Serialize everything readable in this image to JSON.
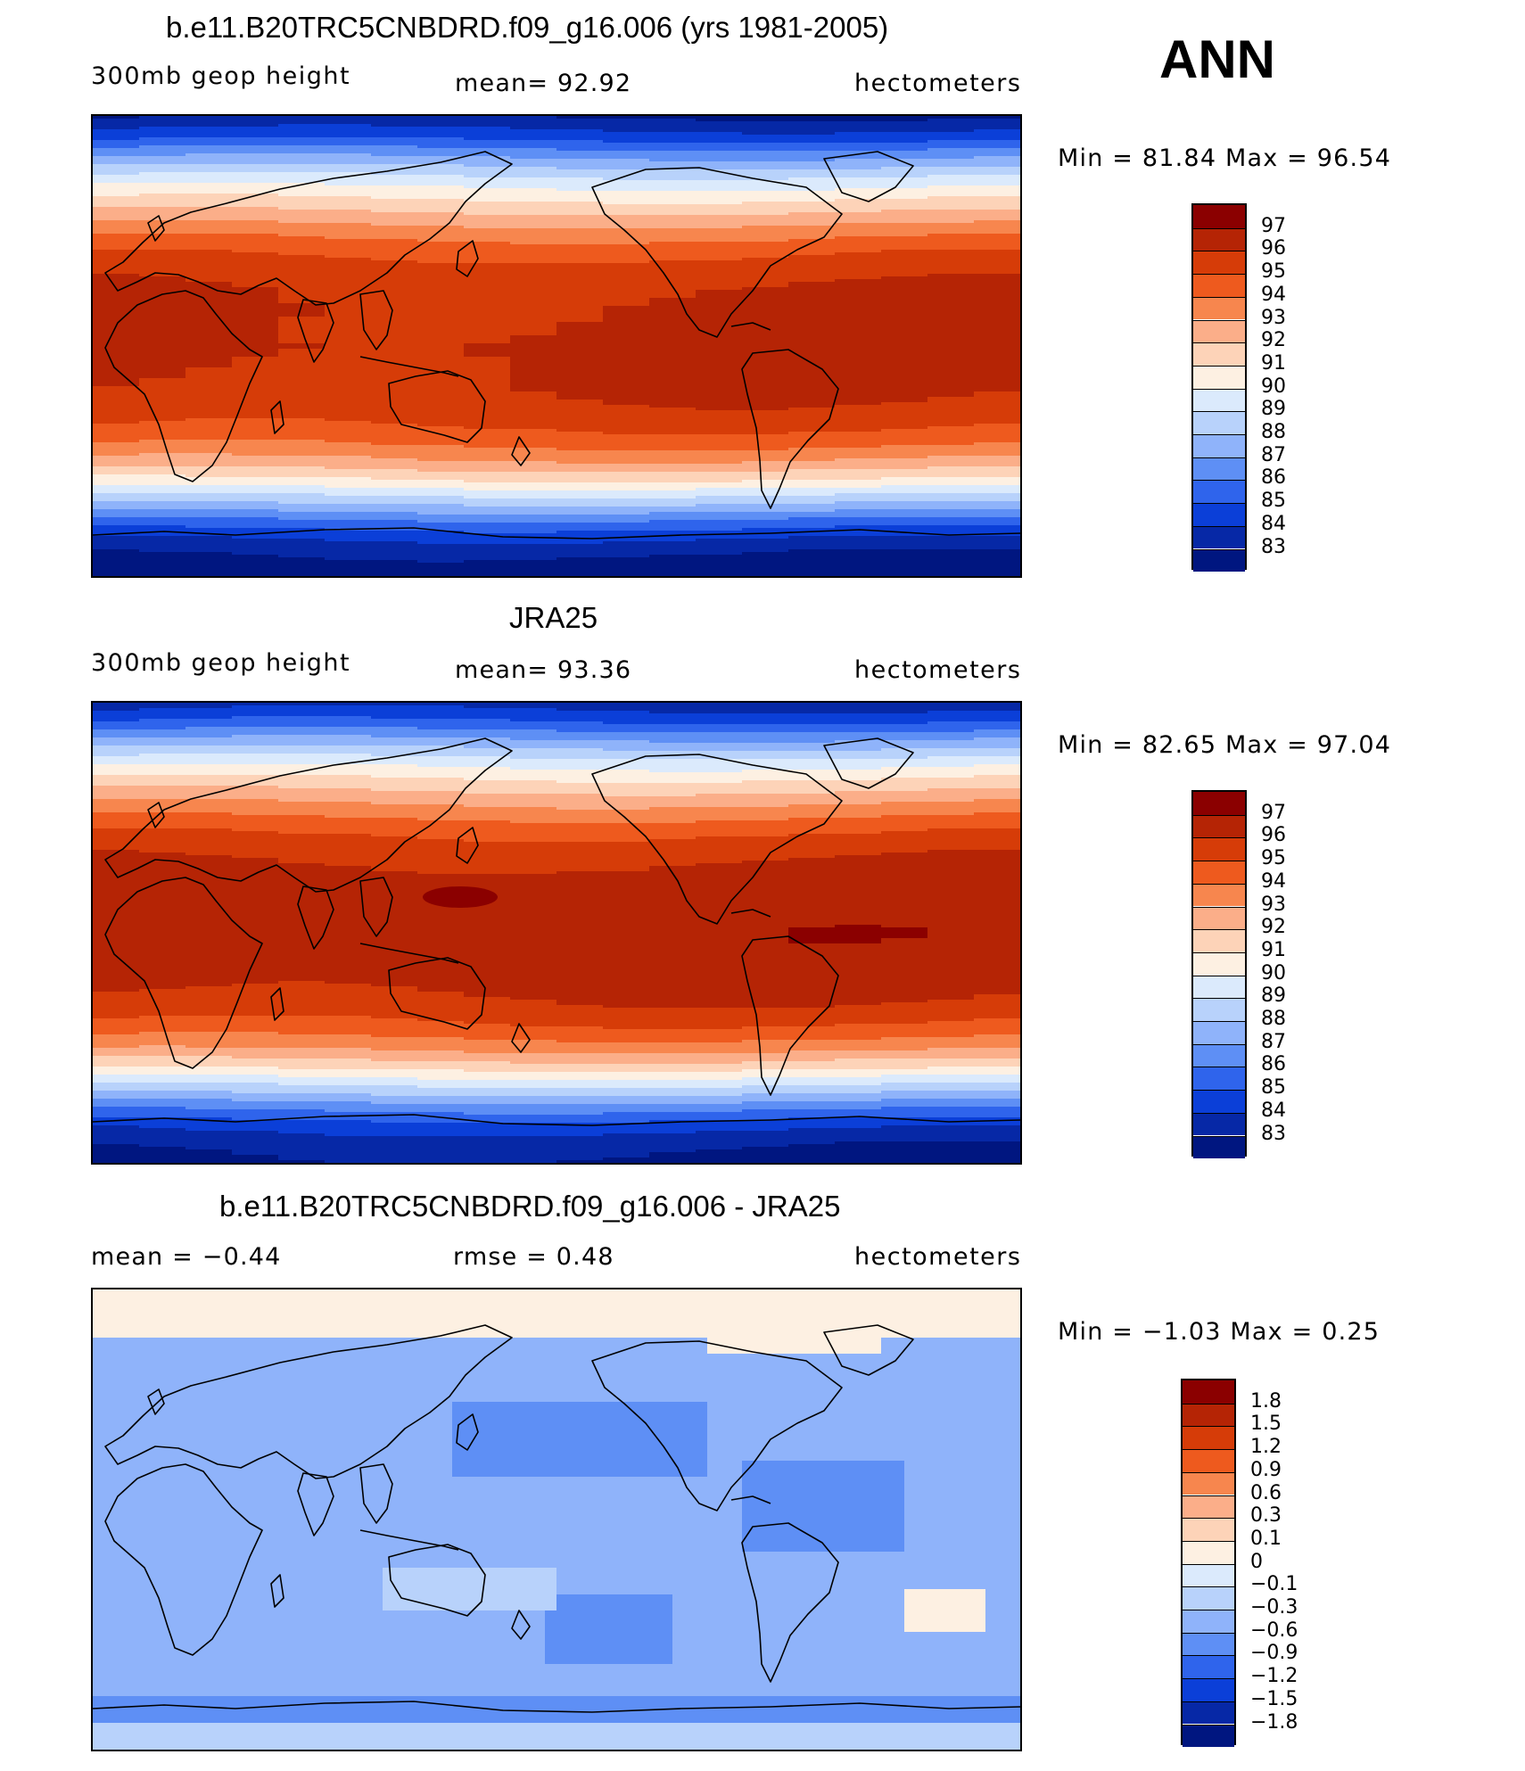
{
  "season": "ANN",
  "chart_data": [
    {
      "type": "heatmap",
      "title": "b.e11.B20TRC5CNBDRD.f09_g16.006 (yrs 1981-2005)",
      "left_label": "300mb geop height",
      "center_label": "mean=  92.92",
      "right_label": "hectometers",
      "min_max": "Min =   81.84  Max =   96.54",
      "mean": 92.92,
      "min": 81.84,
      "max": 96.54,
      "units": "hectometers",
      "levels": [
        "97",
        "96",
        "95",
        "94",
        "93",
        "92",
        "91",
        "90",
        "89",
        "88",
        "87",
        "86",
        "85",
        "84",
        "83"
      ],
      "colors": [
        "#8b0000",
        "#b52405",
        "#d63c08",
        "#ee5a1e",
        "#f7864e",
        "#fbae89",
        "#fdd3b8",
        "#fdf0e2",
        "#dbeafc",
        "#b8d2fb",
        "#8fb3fa",
        "#5e8ff5",
        "#2f64ec",
        "#0b3fd8",
        "#0628a6",
        "#001680"
      ],
      "lat_profile": [
        83.0,
        84.6,
        86.8,
        88.9,
        90.6,
        92.1,
        93.6,
        94.8,
        95.6,
        96.0,
        96.2,
        96.2,
        96.3,
        96.2,
        96.1,
        95.8,
        95.2,
        94.2,
        92.8,
        90.8,
        88.4,
        86.0,
        84.0,
        82.8,
        82.1
      ]
    },
    {
      "type": "heatmap",
      "title": "JRA25",
      "left_label": "300mb geop height",
      "center_label": "mean=  93.36",
      "right_label": "hectometers",
      "min_max": "Min =   82.65  Max =   97.04",
      "mean": 93.36,
      "min": 82.65,
      "max": 97.04,
      "units": "hectometers",
      "levels": [
        "97",
        "96",
        "95",
        "94",
        "93",
        "92",
        "91",
        "90",
        "89",
        "88",
        "87",
        "86",
        "85",
        "84",
        "83"
      ],
      "colors": [
        "#8b0000",
        "#b52405",
        "#d63c08",
        "#ee5a1e",
        "#f7864e",
        "#fbae89",
        "#fdd3b8",
        "#fdf0e2",
        "#dbeafc",
        "#b8d2fb",
        "#8fb3fa",
        "#5e8ff5",
        "#2f64ec",
        "#0b3fd8",
        "#0628a6",
        "#001680"
      ],
      "lat_profile": [
        83.5,
        85.2,
        87.4,
        89.5,
        91.2,
        92.7,
        94.1,
        95.2,
        95.9,
        96.4,
        96.6,
        96.6,
        96.7,
        96.6,
        96.5,
        96.2,
        95.6,
        94.6,
        93.2,
        91.2,
        88.8,
        86.5,
        84.4,
        83.2,
        82.7
      ]
    },
    {
      "type": "heatmap",
      "title": "b.e11.B20TRC5CNBDRD.f09_g16.006 - JRA25",
      "left_label": "mean =  −0.44",
      "center_label": "rmse =    0.48",
      "right_label": "hectometers",
      "min_max": "Min =  −1.03  Max =    0.25",
      "mean": -0.44,
      "rmse": 0.48,
      "min": -1.03,
      "max": 0.25,
      "units": "hectometers",
      "levels": [
        "1.8",
        "1.5",
        "1.2",
        "0.9",
        "0.6",
        "0.3",
        "0.1",
        "0",
        "−0.1",
        "−0.3",
        "−0.6",
        "−0.9",
        "−1.2",
        "−1.5",
        "−1.8"
      ],
      "colors": [
        "#8b0000",
        "#b52405",
        "#d63c08",
        "#ee5a1e",
        "#f7864e",
        "#fbae89",
        "#fdd3b8",
        "#fdf0e2",
        "#dbeafc",
        "#b8d2fb",
        "#8fb3fa",
        "#5e8ff5",
        "#2f64ec",
        "#0b3fd8",
        "#0628a6",
        "#001680"
      ]
    }
  ]
}
